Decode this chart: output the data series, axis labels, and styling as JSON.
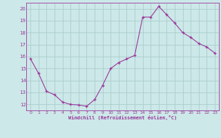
{
  "x": [
    0,
    1,
    2,
    3,
    4,
    5,
    6,
    7,
    8,
    9,
    10,
    11,
    12,
    13,
    14,
    15,
    16,
    17,
    18,
    19,
    20,
    21,
    22,
    23
  ],
  "y": [
    15.8,
    14.6,
    13.1,
    12.8,
    12.2,
    12.0,
    11.95,
    11.85,
    12.4,
    13.6,
    15.0,
    15.5,
    15.8,
    16.1,
    19.3,
    19.3,
    20.2,
    19.5,
    18.8,
    18.0,
    17.6,
    17.1,
    16.8,
    16.3
  ],
  "xlim": [
    -0.5,
    23.5
  ],
  "ylim": [
    11.5,
    20.5
  ],
  "yticks": [
    12,
    13,
    14,
    15,
    16,
    17,
    18,
    19,
    20
  ],
  "xticks": [
    0,
    1,
    2,
    3,
    4,
    5,
    6,
    7,
    8,
    9,
    10,
    11,
    12,
    13,
    14,
    15,
    16,
    17,
    18,
    19,
    20,
    21,
    22,
    23
  ],
  "xlabel": "Windchill (Refroidissement éolien,°C)",
  "line_color": "#993399",
  "marker_color": "#993399",
  "bg_color": "#cce8e8",
  "grid_color": "#aacccc",
  "axis_color": "#993399",
  "tick_color": "#993399",
  "label_color": "#993399"
}
